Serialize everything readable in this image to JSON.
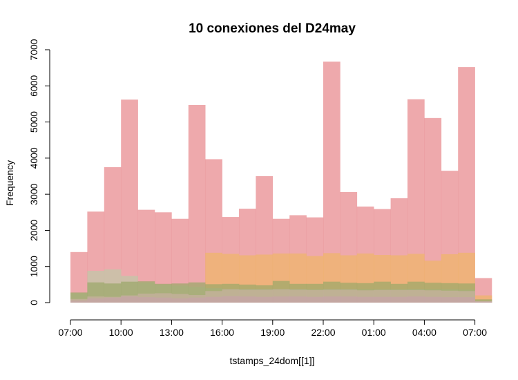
{
  "chart_data": {
    "type": "bar",
    "title": "10 conexiones del D24may",
    "xlabel": "tstamps_24dom[[1]]",
    "ylabel": "Frequency",
    "ylim": [
      0,
      7000
    ],
    "grid": false,
    "legend": "none",
    "x_ticks": [
      "07:00",
      "10:00",
      "13:00",
      "16:00",
      "19:00",
      "22:00",
      "01:00",
      "04:00",
      "07:00"
    ],
    "y_ticks": [
      "0",
      "1000",
      "2000",
      "3000",
      "4000",
      "5000",
      "6000",
      "7000"
    ],
    "bins": [
      "07:00",
      "08:00",
      "09:00",
      "10:00",
      "11:00",
      "12:00",
      "13:00",
      "14:00",
      "15:00",
      "16:00",
      "17:00",
      "18:00",
      "19:00",
      "20:00",
      "21:00",
      "22:00",
      "23:00",
      "00:00",
      "01:00",
      "02:00",
      "03:00",
      "04:00",
      "05:00",
      "06:00",
      "07:00"
    ],
    "series": [
      {
        "color": "#e8888c",
        "values": [
          1400,
          2520,
          3750,
          5620,
          2570,
          2500,
          2320,
          5470,
          3970,
          2370,
          2600,
          3500,
          2320,
          2420,
          2360,
          6670,
          3060,
          2660,
          2590,
          2890,
          5630,
          5110,
          3650,
          6520,
          680
        ]
      },
      {
        "color": "#f0b56a",
        "values": [
          0,
          0,
          0,
          0,
          0,
          0,
          0,
          0,
          1380,
          1350,
          1310,
          1330,
          1360,
          1360,
          1290,
          1370,
          1310,
          1360,
          1320,
          1310,
          1350,
          1160,
          1340,
          1380,
          200
        ]
      },
      {
        "color": "#c0c8a8",
        "values": [
          260,
          880,
          920,
          740,
          560,
          500,
          470,
          440,
          400,
          380,
          380,
          380,
          380,
          380,
          370,
          380,
          380,
          370,
          370,
          370,
          380,
          370,
          370,
          360,
          60
        ]
      },
      {
        "color": "#9ba86a",
        "values": [
          280,
          560,
          530,
          580,
          590,
          520,
          530,
          560,
          510,
          520,
          500,
          480,
          600,
          520,
          520,
          580,
          550,
          540,
          580,
          520,
          580,
          550,
          540,
          530,
          90
        ]
      },
      {
        "color": "#c8b1a0",
        "values": [
          100,
          170,
          160,
          200,
          250,
          260,
          240,
          210,
          320,
          370,
          360,
          360,
          370,
          360,
          350,
          360,
          360,
          340,
          350,
          350,
          350,
          340,
          330,
          320,
          40
        ]
      },
      {
        "color": "#c6a4a8",
        "values": [
          60,
          120,
          140,
          170,
          150,
          140,
          120,
          140,
          160,
          180,
          170,
          160,
          170,
          170,
          160,
          170,
          170,
          160,
          160,
          160,
          170,
          160,
          150,
          150,
          30
        ]
      }
    ]
  }
}
